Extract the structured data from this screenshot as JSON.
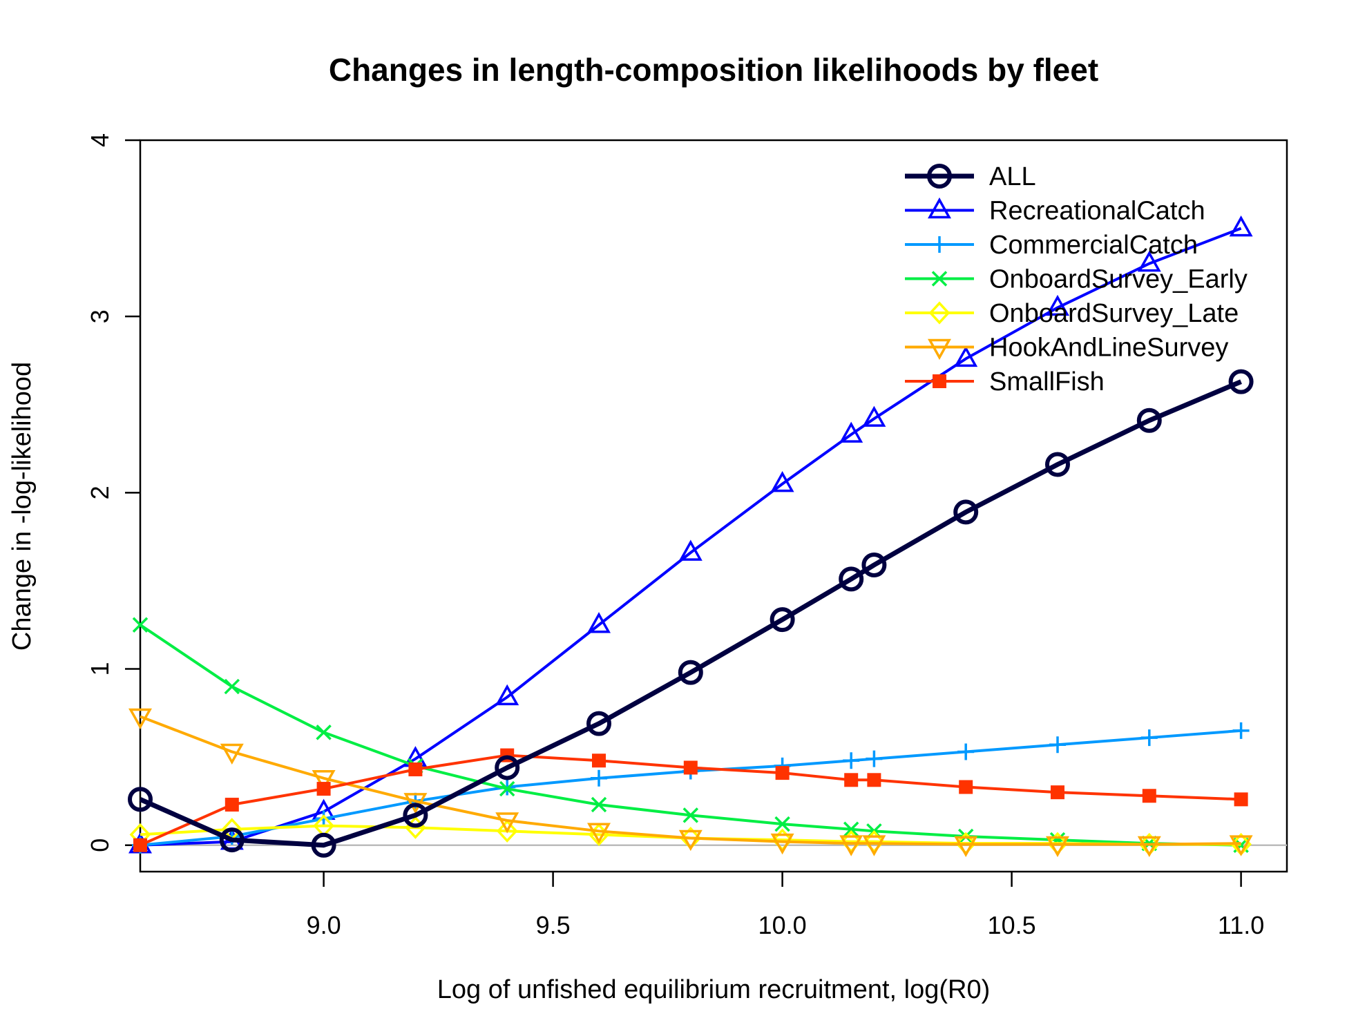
{
  "chart_data": {
    "type": "line",
    "title": "Changes in length-composition likelihoods by fleet",
    "xlabel": "Log of unfished equilibrium recruitment, log(R0)",
    "ylabel": "Change in -log-likelihood",
    "xlim": [
      8.6,
      11.1
    ],
    "ylim": [
      -0.15,
      4.0
    ],
    "xticks": [
      "9.0",
      "9.5",
      "10.0",
      "10.5",
      "11.0"
    ],
    "yticks": [
      "0",
      "1",
      "2",
      "3",
      "4"
    ],
    "legend_position": "top-right",
    "reference_line_y": 0,
    "x": [
      8.6,
      8.8,
      9.0,
      9.2,
      9.4,
      9.6,
      9.8,
      10.0,
      10.15,
      10.2,
      10.4,
      10.6,
      10.8,
      11.0
    ],
    "series": [
      {
        "name": "ALL",
        "color": "#000040",
        "marker": "circle",
        "values": [
          0.26,
          0.03,
          0.0,
          0.17,
          0.44,
          0.69,
          0.98,
          1.28,
          1.51,
          1.59,
          1.89,
          2.16,
          2.41,
          2.63
        ]
      },
      {
        "name": "RecreationalCatch",
        "color": "#0000ff",
        "marker": "triangle-up",
        "values": [
          0.0,
          0.02,
          0.19,
          0.49,
          0.84,
          1.25,
          1.66,
          2.05,
          2.33,
          2.42,
          2.76,
          3.05,
          3.3,
          3.5
        ]
      },
      {
        "name": "CommercialCatch",
        "color": "#0099ff",
        "marker": "plus",
        "values": [
          0.0,
          0.05,
          0.15,
          0.25,
          0.33,
          0.38,
          0.42,
          0.45,
          0.48,
          0.49,
          0.53,
          0.57,
          0.61,
          0.65
        ]
      },
      {
        "name": "OnboardSurvey_Early",
        "color": "#00ee44",
        "marker": "cross",
        "values": [
          1.25,
          0.9,
          0.64,
          0.45,
          0.32,
          0.23,
          0.17,
          0.12,
          0.09,
          0.08,
          0.05,
          0.03,
          0.01,
          0.0
        ]
      },
      {
        "name": "OnboardSurvey_Late",
        "color": "#ffff00",
        "marker": "diamond",
        "values": [
          0.06,
          0.09,
          0.11,
          0.1,
          0.08,
          0.06,
          0.04,
          0.03,
          0.02,
          0.02,
          0.01,
          0.01,
          0.005,
          0.005
        ]
      },
      {
        "name": "HookAndLineSurvey",
        "color": "#ffaa00",
        "marker": "triangle-down",
        "values": [
          0.73,
          0.53,
          0.38,
          0.25,
          0.14,
          0.08,
          0.04,
          0.02,
          0.01,
          0.01,
          0.005,
          0.005,
          0.005,
          0.01
        ]
      },
      {
        "name": "SmallFish",
        "color": "#ff3300",
        "marker": "square",
        "values": [
          0.0,
          0.23,
          0.32,
          0.43,
          0.51,
          0.48,
          0.44,
          0.41,
          0.37,
          0.37,
          0.33,
          0.3,
          0.28,
          0.26
        ]
      }
    ]
  }
}
